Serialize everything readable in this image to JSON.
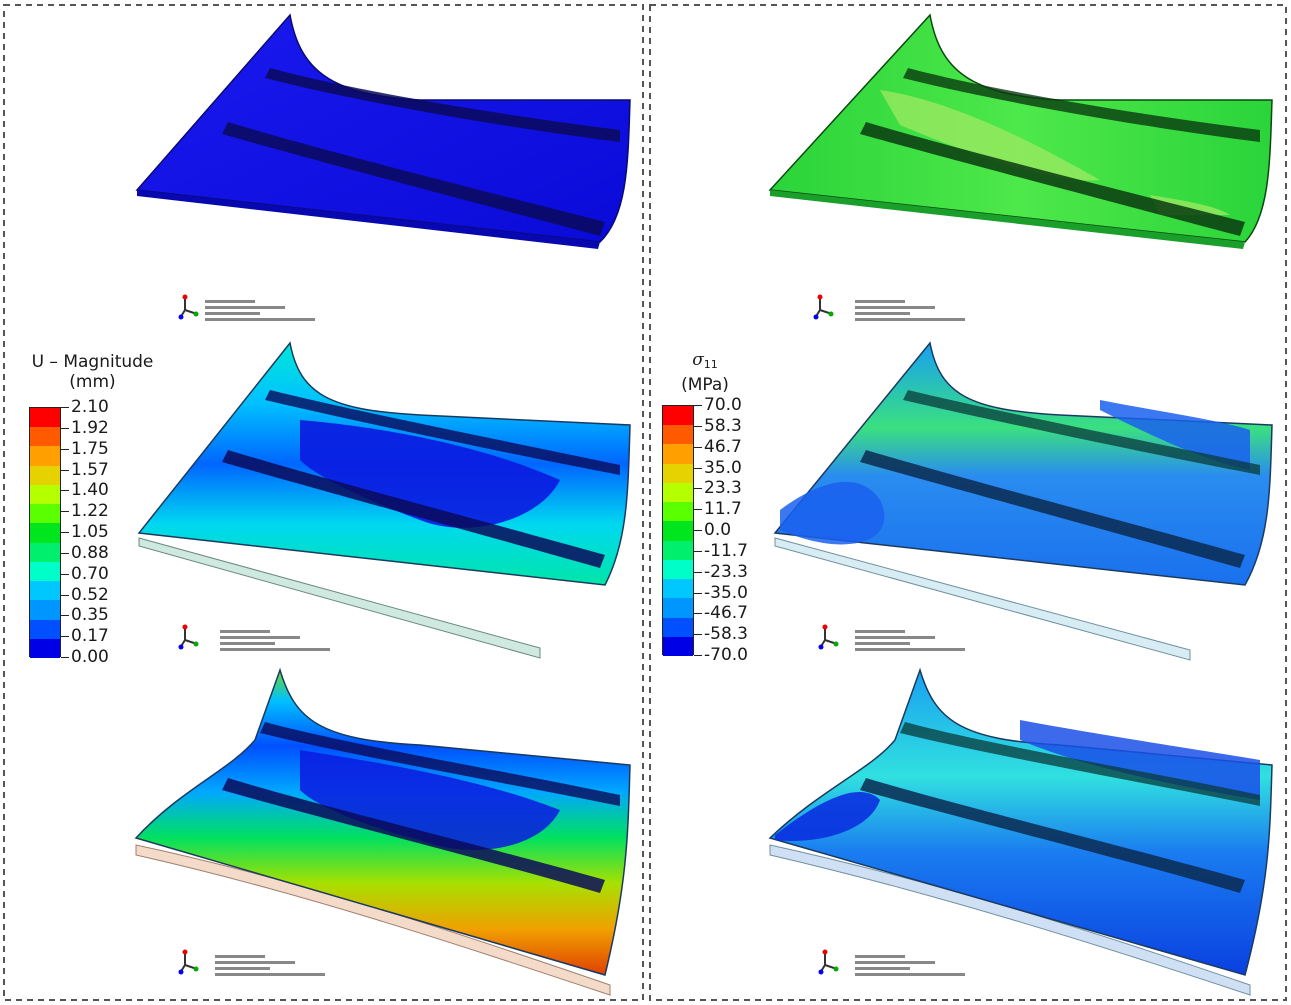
{
  "left_panel": {
    "legend": {
      "title_line1": "U – Magnitude",
      "title_line2": "(mm)",
      "ticks": [
        "2.10",
        "1.92",
        "1.75",
        "1.57",
        "1.40",
        "1.22",
        "1.05",
        "0.88",
        "0.70",
        "0.52",
        "0.35",
        "0.17",
        "0.00"
      ]
    }
  },
  "right_panel": {
    "legend": {
      "symbol": "σ",
      "subscript": "11",
      "unit": "(MPa)",
      "ticks": [
        "70.0",
        "58.3",
        "46.7",
        "35.0",
        "23.3",
        "11.7",
        "0.0",
        "-11.7",
        "-23.3",
        "-35.0",
        "-46.7",
        "-58.3",
        "-70.0"
      ]
    }
  },
  "colors": {
    "contour_bands": [
      "#ff0000",
      "#ff5a00",
      "#ffa000",
      "#e6d200",
      "#b4ff00",
      "#5aff00",
      "#00e61e",
      "#00f06e",
      "#00ffc8",
      "#00c8ff",
      "#0096ff",
      "#0050ff",
      "#0000e6"
    ],
    "panel_border": "#555555"
  }
}
